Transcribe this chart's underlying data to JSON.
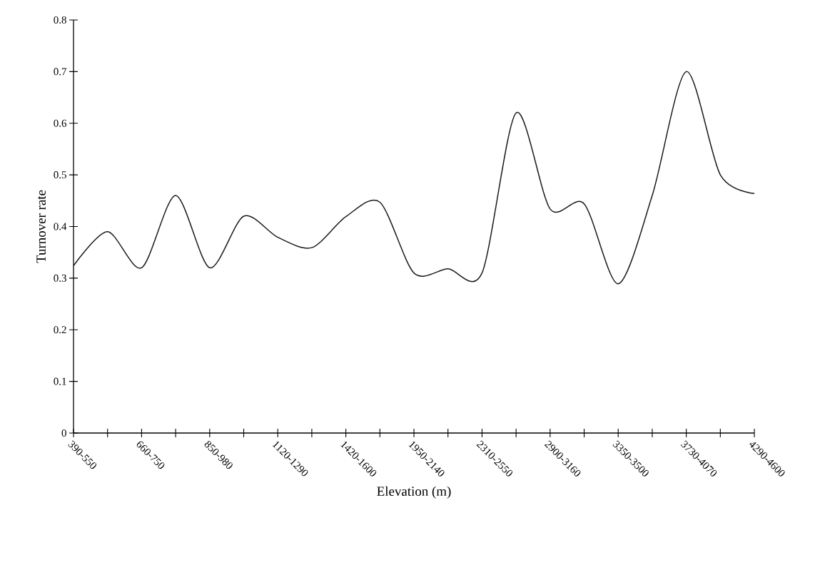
{
  "chart_data": {
    "type": "line",
    "xlabel": "Elevation (m)",
    "ylabel": "Turnover rate",
    "categories": [
      "390-550",
      null,
      "660-750",
      null,
      "850-980",
      null,
      "1120-1290",
      null,
      "1420-1600",
      null,
      "1950-2140",
      null,
      "2310-2550",
      null,
      "2900-3160",
      null,
      "3350-3500",
      null,
      "3730-4070",
      null,
      "4290-4600"
    ],
    "values": [
      0.324,
      0.39,
      0.32,
      0.46,
      0.32,
      0.42,
      0.379,
      0.359,
      0.419,
      0.447,
      0.31,
      0.318,
      0.31,
      0.62,
      0.434,
      0.444,
      0.289,
      0.46,
      0.7,
      0.5,
      0.464
    ],
    "color": "#1a1a1a",
    "ylim": [
      0,
      0.8
    ],
    "yticks": [
      0,
      0.1,
      0.2,
      0.3,
      0.4,
      0.5,
      0.6,
      0.7,
      0.8
    ]
  }
}
